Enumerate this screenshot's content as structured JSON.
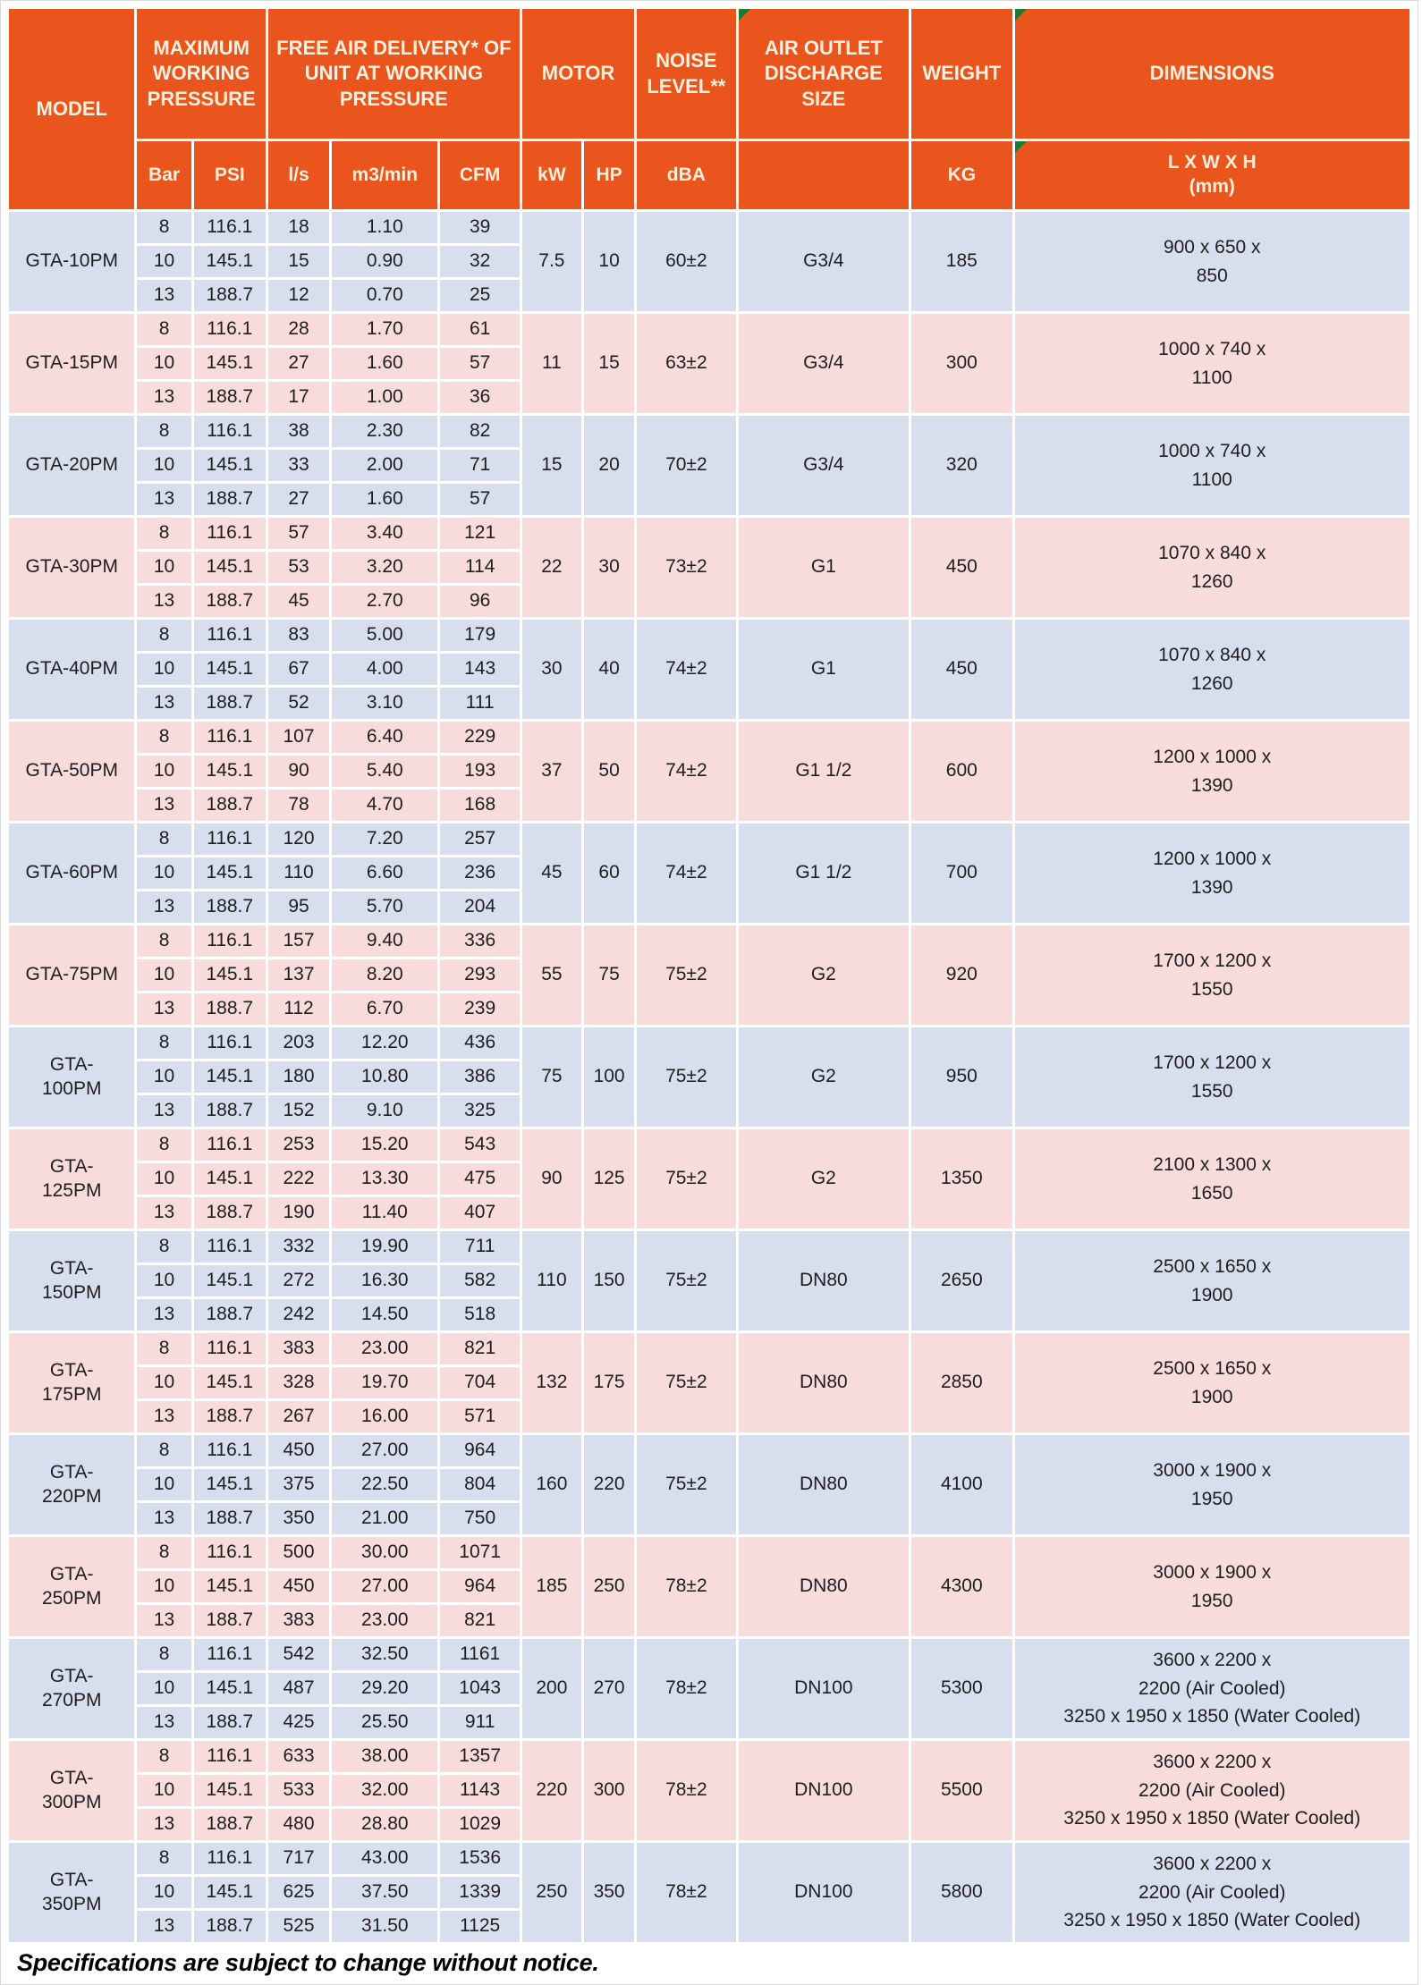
{
  "table": {
    "header": {
      "model": "MODEL",
      "max_pressure": "MAXIMUM WORKING PRESSURE",
      "fad": "FREE AIR DELIVERY* OF UNIT AT WORKING PRESSURE",
      "motor": "MOTOR",
      "noise": "NOISE LEVEL**",
      "outlet": "AIR OUTLET DISCHARGE SIZE",
      "weight": "WEIGHT",
      "dimensions": "DIMENSIONS"
    },
    "subheader": {
      "bar": "Bar",
      "psi": "PSI",
      "ls": "l/s",
      "m3min": "m3/min",
      "cfm": "CFM",
      "kw": "kW",
      "hp": "HP",
      "dba": "dBA",
      "outlet": "",
      "kg": "KG",
      "lwh_lines": [
        "L X W X H",
        "(mm)"
      ]
    },
    "models": [
      {
        "name": "GTA-10PM",
        "rows": [
          [
            "8",
            "116.1",
            "18",
            "1.10",
            "39"
          ],
          [
            "10",
            "145.1",
            "15",
            "0.90",
            "32"
          ],
          [
            "13",
            "188.7",
            "12",
            "0.70",
            "25"
          ]
        ],
        "kw": "7.5",
        "hp": "10",
        "dba": "60±2",
        "outlet": "G3/4",
        "kg": "185",
        "dims": [
          "900 x 650 x",
          "850"
        ]
      },
      {
        "name": "GTA-15PM",
        "rows": [
          [
            "8",
            "116.1",
            "28",
            "1.70",
            "61"
          ],
          [
            "10",
            "145.1",
            "27",
            "1.60",
            "57"
          ],
          [
            "13",
            "188.7",
            "17",
            "1.00",
            "36"
          ]
        ],
        "kw": "11",
        "hp": "15",
        "dba": "63±2",
        "outlet": "G3/4",
        "kg": "300",
        "dims": [
          "1000 x 740 x",
          "1100"
        ]
      },
      {
        "name": "GTA-20PM",
        "rows": [
          [
            "8",
            "116.1",
            "38",
            "2.30",
            "82"
          ],
          [
            "10",
            "145.1",
            "33",
            "2.00",
            "71"
          ],
          [
            "13",
            "188.7",
            "27",
            "1.60",
            "57"
          ]
        ],
        "kw": "15",
        "hp": "20",
        "dba": "70±2",
        "outlet": "G3/4",
        "kg": "320",
        "dims": [
          "1000 x 740 x",
          "1100"
        ]
      },
      {
        "name": "GTA-30PM",
        "rows": [
          [
            "8",
            "116.1",
            "57",
            "3.40",
            "121"
          ],
          [
            "10",
            "145.1",
            "53",
            "3.20",
            "114"
          ],
          [
            "13",
            "188.7",
            "45",
            "2.70",
            "96"
          ]
        ],
        "kw": "22",
        "hp": "30",
        "dba": "73±2",
        "outlet": "G1",
        "kg": "450",
        "dims": [
          "1070 x 840 x",
          "1260"
        ]
      },
      {
        "name": "GTA-40PM",
        "rows": [
          [
            "8",
            "116.1",
            "83",
            "5.00",
            "179"
          ],
          [
            "10",
            "145.1",
            "67",
            "4.00",
            "143"
          ],
          [
            "13",
            "188.7",
            "52",
            "3.10",
            "111"
          ]
        ],
        "kw": "30",
        "hp": "40",
        "dba": "74±2",
        "outlet": "G1",
        "kg": "450",
        "dims": [
          "1070 x 840 x",
          "1260"
        ]
      },
      {
        "name": "GTA-50PM",
        "rows": [
          [
            "8",
            "116.1",
            "107",
            "6.40",
            "229"
          ],
          [
            "10",
            "145.1",
            "90",
            "5.40",
            "193"
          ],
          [
            "13",
            "188.7",
            "78",
            "4.70",
            "168"
          ]
        ],
        "kw": "37",
        "hp": "50",
        "dba": "74±2",
        "outlet": "G1 1/2",
        "kg": "600",
        "dims": [
          "1200 x 1000 x",
          "1390"
        ]
      },
      {
        "name": "GTA-60PM",
        "rows": [
          [
            "8",
            "116.1",
            "120",
            "7.20",
            "257"
          ],
          [
            "10",
            "145.1",
            "110",
            "6.60",
            "236"
          ],
          [
            "13",
            "188.7",
            "95",
            "5.70",
            "204"
          ]
        ],
        "kw": "45",
        "hp": "60",
        "dba": "74±2",
        "outlet": "G1 1/2",
        "kg": "700",
        "dims": [
          "1200 x 1000 x",
          "1390"
        ]
      },
      {
        "name": "GTA-75PM",
        "rows": [
          [
            "8",
            "116.1",
            "157",
            "9.40",
            "336"
          ],
          [
            "10",
            "145.1",
            "137",
            "8.20",
            "293"
          ],
          [
            "13",
            "188.7",
            "112",
            "6.70",
            "239"
          ]
        ],
        "kw": "55",
        "hp": "75",
        "dba": "75±2",
        "outlet": "G2",
        "kg": "920",
        "dims": [
          "1700 x 1200 x",
          "1550"
        ]
      },
      {
        "name": "GTA-100PM",
        "rows": [
          [
            "8",
            "116.1",
            "203",
            "12.20",
            "436"
          ],
          [
            "10",
            "145.1",
            "180",
            "10.80",
            "386"
          ],
          [
            "13",
            "188.7",
            "152",
            "9.10",
            "325"
          ]
        ],
        "kw": "75",
        "hp": "100",
        "dba": "75±2",
        "outlet": "G2",
        "kg": "950",
        "dims": [
          "1700 x 1200 x",
          "1550"
        ]
      },
      {
        "name": "GTA-125PM",
        "rows": [
          [
            "8",
            "116.1",
            "253",
            "15.20",
            "543"
          ],
          [
            "10",
            "145.1",
            "222",
            "13.30",
            "475"
          ],
          [
            "13",
            "188.7",
            "190",
            "11.40",
            "407"
          ]
        ],
        "kw": "90",
        "hp": "125",
        "dba": "75±2",
        "outlet": "G2",
        "kg": "1350",
        "dims": [
          "2100 x 1300 x",
          "1650"
        ]
      },
      {
        "name": "GTA-150PM",
        "rows": [
          [
            "8",
            "116.1",
            "332",
            "19.90",
            "711"
          ],
          [
            "10",
            "145.1",
            "272",
            "16.30",
            "582"
          ],
          [
            "13",
            "188.7",
            "242",
            "14.50",
            "518"
          ]
        ],
        "kw": "110",
        "hp": "150",
        "dba": "75±2",
        "outlet": "DN80",
        "kg": "2650",
        "dims": [
          "2500 x 1650 x",
          "1900"
        ]
      },
      {
        "name": "GTA-175PM",
        "rows": [
          [
            "8",
            "116.1",
            "383",
            "23.00",
            "821"
          ],
          [
            "10",
            "145.1",
            "328",
            "19.70",
            "704"
          ],
          [
            "13",
            "188.7",
            "267",
            "16.00",
            "571"
          ]
        ],
        "kw": "132",
        "hp": "175",
        "dba": "75±2",
        "outlet": "DN80",
        "kg": "2850",
        "dims": [
          "2500 x 1650 x",
          "1900"
        ]
      },
      {
        "name": "GTA-220PM",
        "rows": [
          [
            "8",
            "116.1",
            "450",
            "27.00",
            "964"
          ],
          [
            "10",
            "145.1",
            "375",
            "22.50",
            "804"
          ],
          [
            "13",
            "188.7",
            "350",
            "21.00",
            "750"
          ]
        ],
        "kw": "160",
        "hp": "220",
        "dba": "75±2",
        "outlet": "DN80",
        "kg": "4100",
        "dims": [
          "3000 x 1900 x",
          "1950"
        ]
      },
      {
        "name": "GTA-250PM",
        "rows": [
          [
            "8",
            "116.1",
            "500",
            "30.00",
            "1071"
          ],
          [
            "10",
            "145.1",
            "450",
            "27.00",
            "964"
          ],
          [
            "13",
            "188.7",
            "383",
            "23.00",
            "821"
          ]
        ],
        "kw": "185",
        "hp": "250",
        "dba": "78±2",
        "outlet": "DN80",
        "kg": "4300",
        "dims": [
          "3000 x 1900 x",
          "1950"
        ]
      },
      {
        "name": "GTA-270PM",
        "rows": [
          [
            "8",
            "116.1",
            "542",
            "32.50",
            "1161"
          ],
          [
            "10",
            "145.1",
            "487",
            "29.20",
            "1043"
          ],
          [
            "13",
            "188.7",
            "425",
            "25.50",
            "911"
          ]
        ],
        "kw": "200",
        "hp": "270",
        "dba": "78±2",
        "outlet": "DN100",
        "kg": "5300",
        "dims": [
          "3600 x 2200 x",
          "2200 (Air Cooled)",
          "3250 x 1950 x 1850 (Water Cooled)"
        ]
      },
      {
        "name": "GTA-300PM",
        "rows": [
          [
            "8",
            "116.1",
            "633",
            "38.00",
            "1357"
          ],
          [
            "10",
            "145.1",
            "533",
            "32.00",
            "1143"
          ],
          [
            "13",
            "188.7",
            "480",
            "28.80",
            "1029"
          ]
        ],
        "kw": "220",
        "hp": "300",
        "dba": "78±2",
        "outlet": "DN100",
        "kg": "5500",
        "dims": [
          "3600 x 2200 x",
          "2200 (Air Cooled)",
          "3250 x 1950 x 1850 (Water Cooled)"
        ]
      },
      {
        "name": "GTA-350PM",
        "rows": [
          [
            "8",
            "116.1",
            "717",
            "43.00",
            "1536"
          ],
          [
            "10",
            "145.1",
            "625",
            "37.50",
            "1339"
          ],
          [
            "13",
            "188.7",
            "525",
            "31.50",
            "1125"
          ]
        ],
        "kw": "250",
        "hp": "350",
        "dba": "78±2",
        "outlet": "DN100",
        "kg": "5800",
        "dims": [
          "3600 x 2200 x",
          "2200 (Air Cooled)",
          "3250 x 1950 x 1850 (Water Cooled)"
        ]
      }
    ]
  },
  "colors": {
    "header_bg": "#E9551C",
    "header_text": "#FDF0DF",
    "row_blue": "#D7DFEF",
    "row_pink": "#F8DBDB",
    "flag_green": "#1C7A33"
  },
  "footer": {
    "note": "Specifications are subject to change without notice."
  }
}
